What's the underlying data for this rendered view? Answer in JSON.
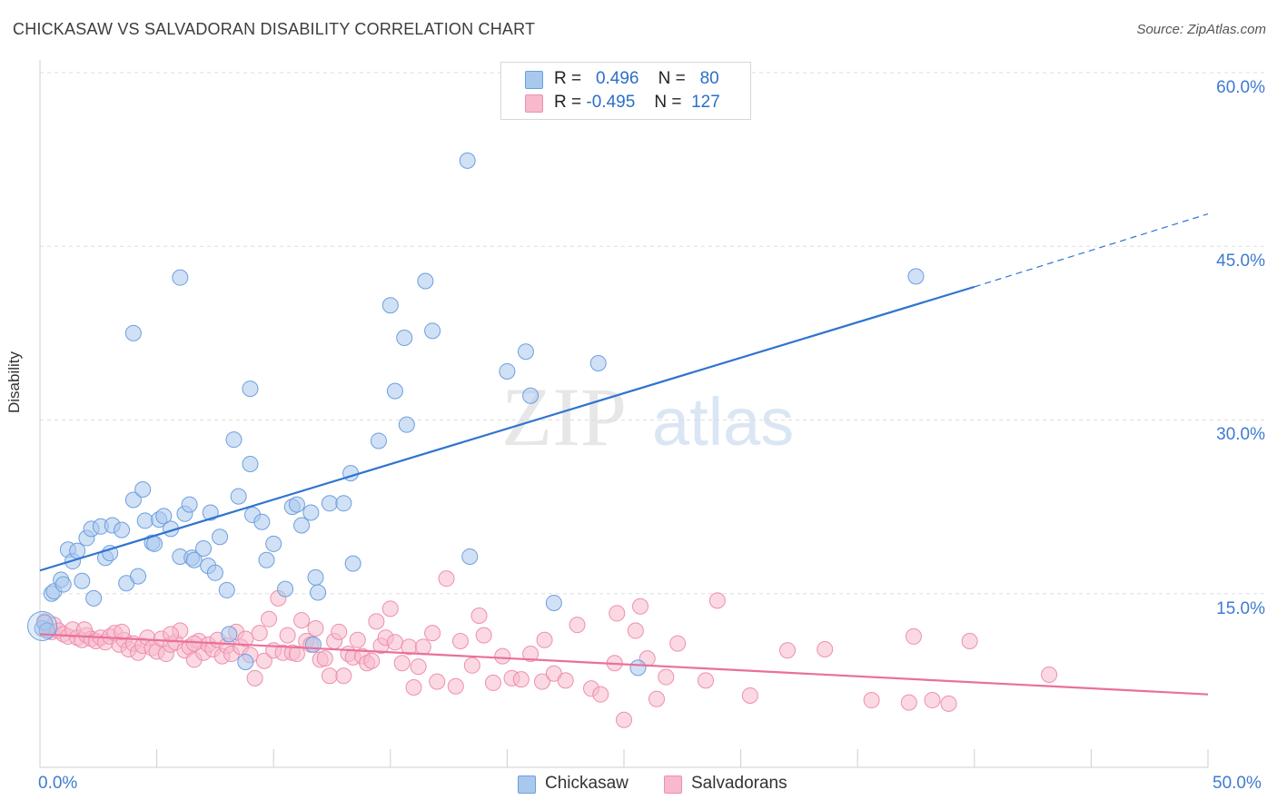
{
  "title": "CHICKASAW VS SALVADORAN DISABILITY CORRELATION CHART",
  "source": "Source: ZipAtlas.com",
  "watermark": {
    "zip": "ZIP",
    "atlas": "atlas"
  },
  "legend": {
    "rows": [
      {
        "r_label": "R =",
        "r_value": "0.496",
        "n_label": "N =",
        "n_value": "80"
      },
      {
        "r_label": "R =",
        "r_value": "-0.495",
        "n_label": "N =",
        "n_value": "127"
      }
    ]
  },
  "colors": {
    "chickasaw_fill": "#a9c8ee",
    "chickasaw_stroke": "#6d9fde",
    "chickasaw_line": "#2f74d0",
    "salvadoran_fill": "#f7b9cc",
    "salvadoran_stroke": "#ee8fae",
    "salvadoran_line": "#e9709a",
    "tick_label": "#3e7bd1",
    "grid": "#dddddd"
  },
  "chart_data": {
    "type": "scatter",
    "ylabel": "Disability",
    "xlim": [
      0,
      50
    ],
    "ylim": [
      0,
      60
    ],
    "x_tick_labels": [
      "0.0%",
      "50.0%"
    ],
    "y_tick_labels": [
      "15.0%",
      "30.0%",
      "45.0%",
      "60.0%"
    ],
    "y_ticks": [
      15,
      30,
      45,
      60
    ],
    "grid": "horizontal dashed",
    "legend_position": "top-center",
    "series": [
      {
        "name": "Chickasaw",
        "trend": {
          "x0": 0,
          "y0": 17.0,
          "x1": 40,
          "y1": 41.5,
          "dashed_to_x": 50,
          "dashed_to_y": 47.8
        },
        "points": [
          [
            0.1,
            12.0
          ],
          [
            0.2,
            12.5
          ],
          [
            0.5,
            15.0
          ],
          [
            0.6,
            15.2
          ],
          [
            0.9,
            16.2
          ],
          [
            1.0,
            15.8
          ],
          [
            1.2,
            18.8
          ],
          [
            1.4,
            17.8
          ],
          [
            1.6,
            18.7
          ],
          [
            1.8,
            16.1
          ],
          [
            2.0,
            19.8
          ],
          [
            2.2,
            20.6
          ],
          [
            2.3,
            14.6
          ],
          [
            2.6,
            20.8
          ],
          [
            2.8,
            18.1
          ],
          [
            3.0,
            18.5
          ],
          [
            3.1,
            20.9
          ],
          [
            3.5,
            20.5
          ],
          [
            3.7,
            15.9
          ],
          [
            4.0,
            23.1
          ],
          [
            4.2,
            16.5
          ],
          [
            4.4,
            24.0
          ],
          [
            4.5,
            21.3
          ],
          [
            4.8,
            19.4
          ],
          [
            4.9,
            19.3
          ],
          [
            5.1,
            21.4
          ],
          [
            5.3,
            21.7
          ],
          [
            5.6,
            20.6
          ],
          [
            6.0,
            18.2
          ],
          [
            6.2,
            21.9
          ],
          [
            6.4,
            22.7
          ],
          [
            6.5,
            18.1
          ],
          [
            6.6,
            17.9
          ],
          [
            7.0,
            18.9
          ],
          [
            7.2,
            17.4
          ],
          [
            7.3,
            22.0
          ],
          [
            7.5,
            16.8
          ],
          [
            7.7,
            19.9
          ],
          [
            8.0,
            15.3
          ],
          [
            8.1,
            11.5
          ],
          [
            8.5,
            23.4
          ],
          [
            8.8,
            9.1
          ],
          [
            9.0,
            26.2
          ],
          [
            9.1,
            21.8
          ],
          [
            9.5,
            21.2
          ],
          [
            9.7,
            17.9
          ],
          [
            10.0,
            19.3
          ],
          [
            10.5,
            15.4
          ],
          [
            10.8,
            22.5
          ],
          [
            11.0,
            22.7
          ],
          [
            11.2,
            20.9
          ],
          [
            11.6,
            22.0
          ],
          [
            11.8,
            16.4
          ],
          [
            11.9,
            15.1
          ],
          [
            12.4,
            22.8
          ],
          [
            13.0,
            22.8
          ],
          [
            13.3,
            25.4
          ],
          [
            13.4,
            17.6
          ],
          [
            8.3,
            28.3
          ],
          [
            9.0,
            32.7
          ],
          [
            4.0,
            37.5
          ],
          [
            6.0,
            42.3
          ],
          [
            14.5,
            28.2
          ],
          [
            15.2,
            32.5
          ],
          [
            15.7,
            29.6
          ],
          [
            15.0,
            39.9
          ],
          [
            16.5,
            42.0
          ],
          [
            16.8,
            37.7
          ],
          [
            15.6,
            37.1
          ],
          [
            18.3,
            52.4
          ],
          [
            18.4,
            18.2
          ],
          [
            20.0,
            34.2
          ],
          [
            20.8,
            35.9
          ],
          [
            21.0,
            32.1
          ],
          [
            22.0,
            14.2
          ],
          [
            23.9,
            34.9
          ],
          [
            25.6,
            8.6
          ],
          [
            37.5,
            42.4
          ],
          [
            11.7,
            10.6
          ],
          [
            0.3,
            11.8
          ]
        ]
      },
      {
        "name": "Salvadorans",
        "trend": {
          "x0": 0,
          "y0": 11.5,
          "x1": 50,
          "y1": 6.3
        },
        "points": [
          [
            0.2,
            12.6
          ],
          [
            0.4,
            11.9
          ],
          [
            0.5,
            11.7
          ],
          [
            0.6,
            12.3
          ],
          [
            0.8,
            11.8
          ],
          [
            1.0,
            11.5
          ],
          [
            1.2,
            11.3
          ],
          [
            1.4,
            11.9
          ],
          [
            1.6,
            11.2
          ],
          [
            1.8,
            11.0
          ],
          [
            2.0,
            11.4
          ],
          [
            2.2,
            11.1
          ],
          [
            2.4,
            10.9
          ],
          [
            2.6,
            11.2
          ],
          [
            2.8,
            10.8
          ],
          [
            3.0,
            11.3
          ],
          [
            3.2,
            11.6
          ],
          [
            3.4,
            10.6
          ],
          [
            3.6,
            11.0
          ],
          [
            3.8,
            10.2
          ],
          [
            4.0,
            10.7
          ],
          [
            4.2,
            9.9
          ],
          [
            4.4,
            10.5
          ],
          [
            4.6,
            11.2
          ],
          [
            4.8,
            10.3
          ],
          [
            5.0,
            10.0
          ],
          [
            5.2,
            11.1
          ],
          [
            5.4,
            9.8
          ],
          [
            5.6,
            10.6
          ],
          [
            5.8,
            10.8
          ],
          [
            6.0,
            11.8
          ],
          [
            6.2,
            10.1
          ],
          [
            6.4,
            10.4
          ],
          [
            6.6,
            9.3
          ],
          [
            6.8,
            10.9
          ],
          [
            7.0,
            9.9
          ],
          [
            7.2,
            10.6
          ],
          [
            7.4,
            10.2
          ],
          [
            7.6,
            11.0
          ],
          [
            7.8,
            9.6
          ],
          [
            8.0,
            10.5
          ],
          [
            8.2,
            9.8
          ],
          [
            8.4,
            11.7
          ],
          [
            8.6,
            10.4
          ],
          [
            8.8,
            11.1
          ],
          [
            9.0,
            9.7
          ],
          [
            9.2,
            7.7
          ],
          [
            9.4,
            11.6
          ],
          [
            9.6,
            9.2
          ],
          [
            9.8,
            12.8
          ],
          [
            10.0,
            10.1
          ],
          [
            10.2,
            14.6
          ],
          [
            10.4,
            9.9
          ],
          [
            10.6,
            11.4
          ],
          [
            10.8,
            9.9
          ],
          [
            11.0,
            9.8
          ],
          [
            11.2,
            12.7
          ],
          [
            11.4,
            10.9
          ],
          [
            11.6,
            10.6
          ],
          [
            11.8,
            12.0
          ],
          [
            12.0,
            9.3
          ],
          [
            12.2,
            9.4
          ],
          [
            12.4,
            7.9
          ],
          [
            12.6,
            10.9
          ],
          [
            12.8,
            11.7
          ],
          [
            13.0,
            7.9
          ],
          [
            13.2,
            9.8
          ],
          [
            13.4,
            9.5
          ],
          [
            13.6,
            11.0
          ],
          [
            13.8,
            9.6
          ],
          [
            14.0,
            9.0
          ],
          [
            14.2,
            9.2
          ],
          [
            14.4,
            12.6
          ],
          [
            14.6,
            10.5
          ],
          [
            14.8,
            11.2
          ],
          [
            15.0,
            13.7
          ],
          [
            15.2,
            10.8
          ],
          [
            15.5,
            9.0
          ],
          [
            15.8,
            10.4
          ],
          [
            16.0,
            6.9
          ],
          [
            16.2,
            8.7
          ],
          [
            16.4,
            10.4
          ],
          [
            16.8,
            11.6
          ],
          [
            17.0,
            7.4
          ],
          [
            17.4,
            16.3
          ],
          [
            17.8,
            7.0
          ],
          [
            18.0,
            10.9
          ],
          [
            18.5,
            8.8
          ],
          [
            18.8,
            13.1
          ],
          [
            19.0,
            11.4
          ],
          [
            19.4,
            7.3
          ],
          [
            19.8,
            9.6
          ],
          [
            20.2,
            7.7
          ],
          [
            20.6,
            7.6
          ],
          [
            21.0,
            9.8
          ],
          [
            21.5,
            7.4
          ],
          [
            22.0,
            8.1
          ],
          [
            22.5,
            7.5
          ],
          [
            23.0,
            12.3
          ],
          [
            23.6,
            6.8
          ],
          [
            24.0,
            6.3
          ],
          [
            24.6,
            9.0
          ],
          [
            25.0,
            4.1
          ],
          [
            25.5,
            11.8
          ],
          [
            26.0,
            9.4
          ],
          [
            26.4,
            5.9
          ],
          [
            26.8,
            7.8
          ],
          [
            27.3,
            10.7
          ],
          [
            28.5,
            7.5
          ],
          [
            29.0,
            14.4
          ],
          [
            30.4,
            6.2
          ],
          [
            32.0,
            10.1
          ],
          [
            33.6,
            10.2
          ],
          [
            35.6,
            5.8
          ],
          [
            37.2,
            5.6
          ],
          [
            37.4,
            11.3
          ],
          [
            38.2,
            5.8
          ],
          [
            38.9,
            5.5
          ],
          [
            39.8,
            10.9
          ],
          [
            43.2,
            8.0
          ],
          [
            25.7,
            13.9
          ],
          [
            21.6,
            11.0
          ],
          [
            24.7,
            13.3
          ],
          [
            5.6,
            11.5
          ],
          [
            3.5,
            11.7
          ],
          [
            6.6,
            10.7
          ],
          [
            1.9,
            11.9
          ]
        ]
      }
    ]
  },
  "bottom_legend": [
    {
      "label": "Chickasaw"
    },
    {
      "label": "Salvadorans"
    }
  ]
}
